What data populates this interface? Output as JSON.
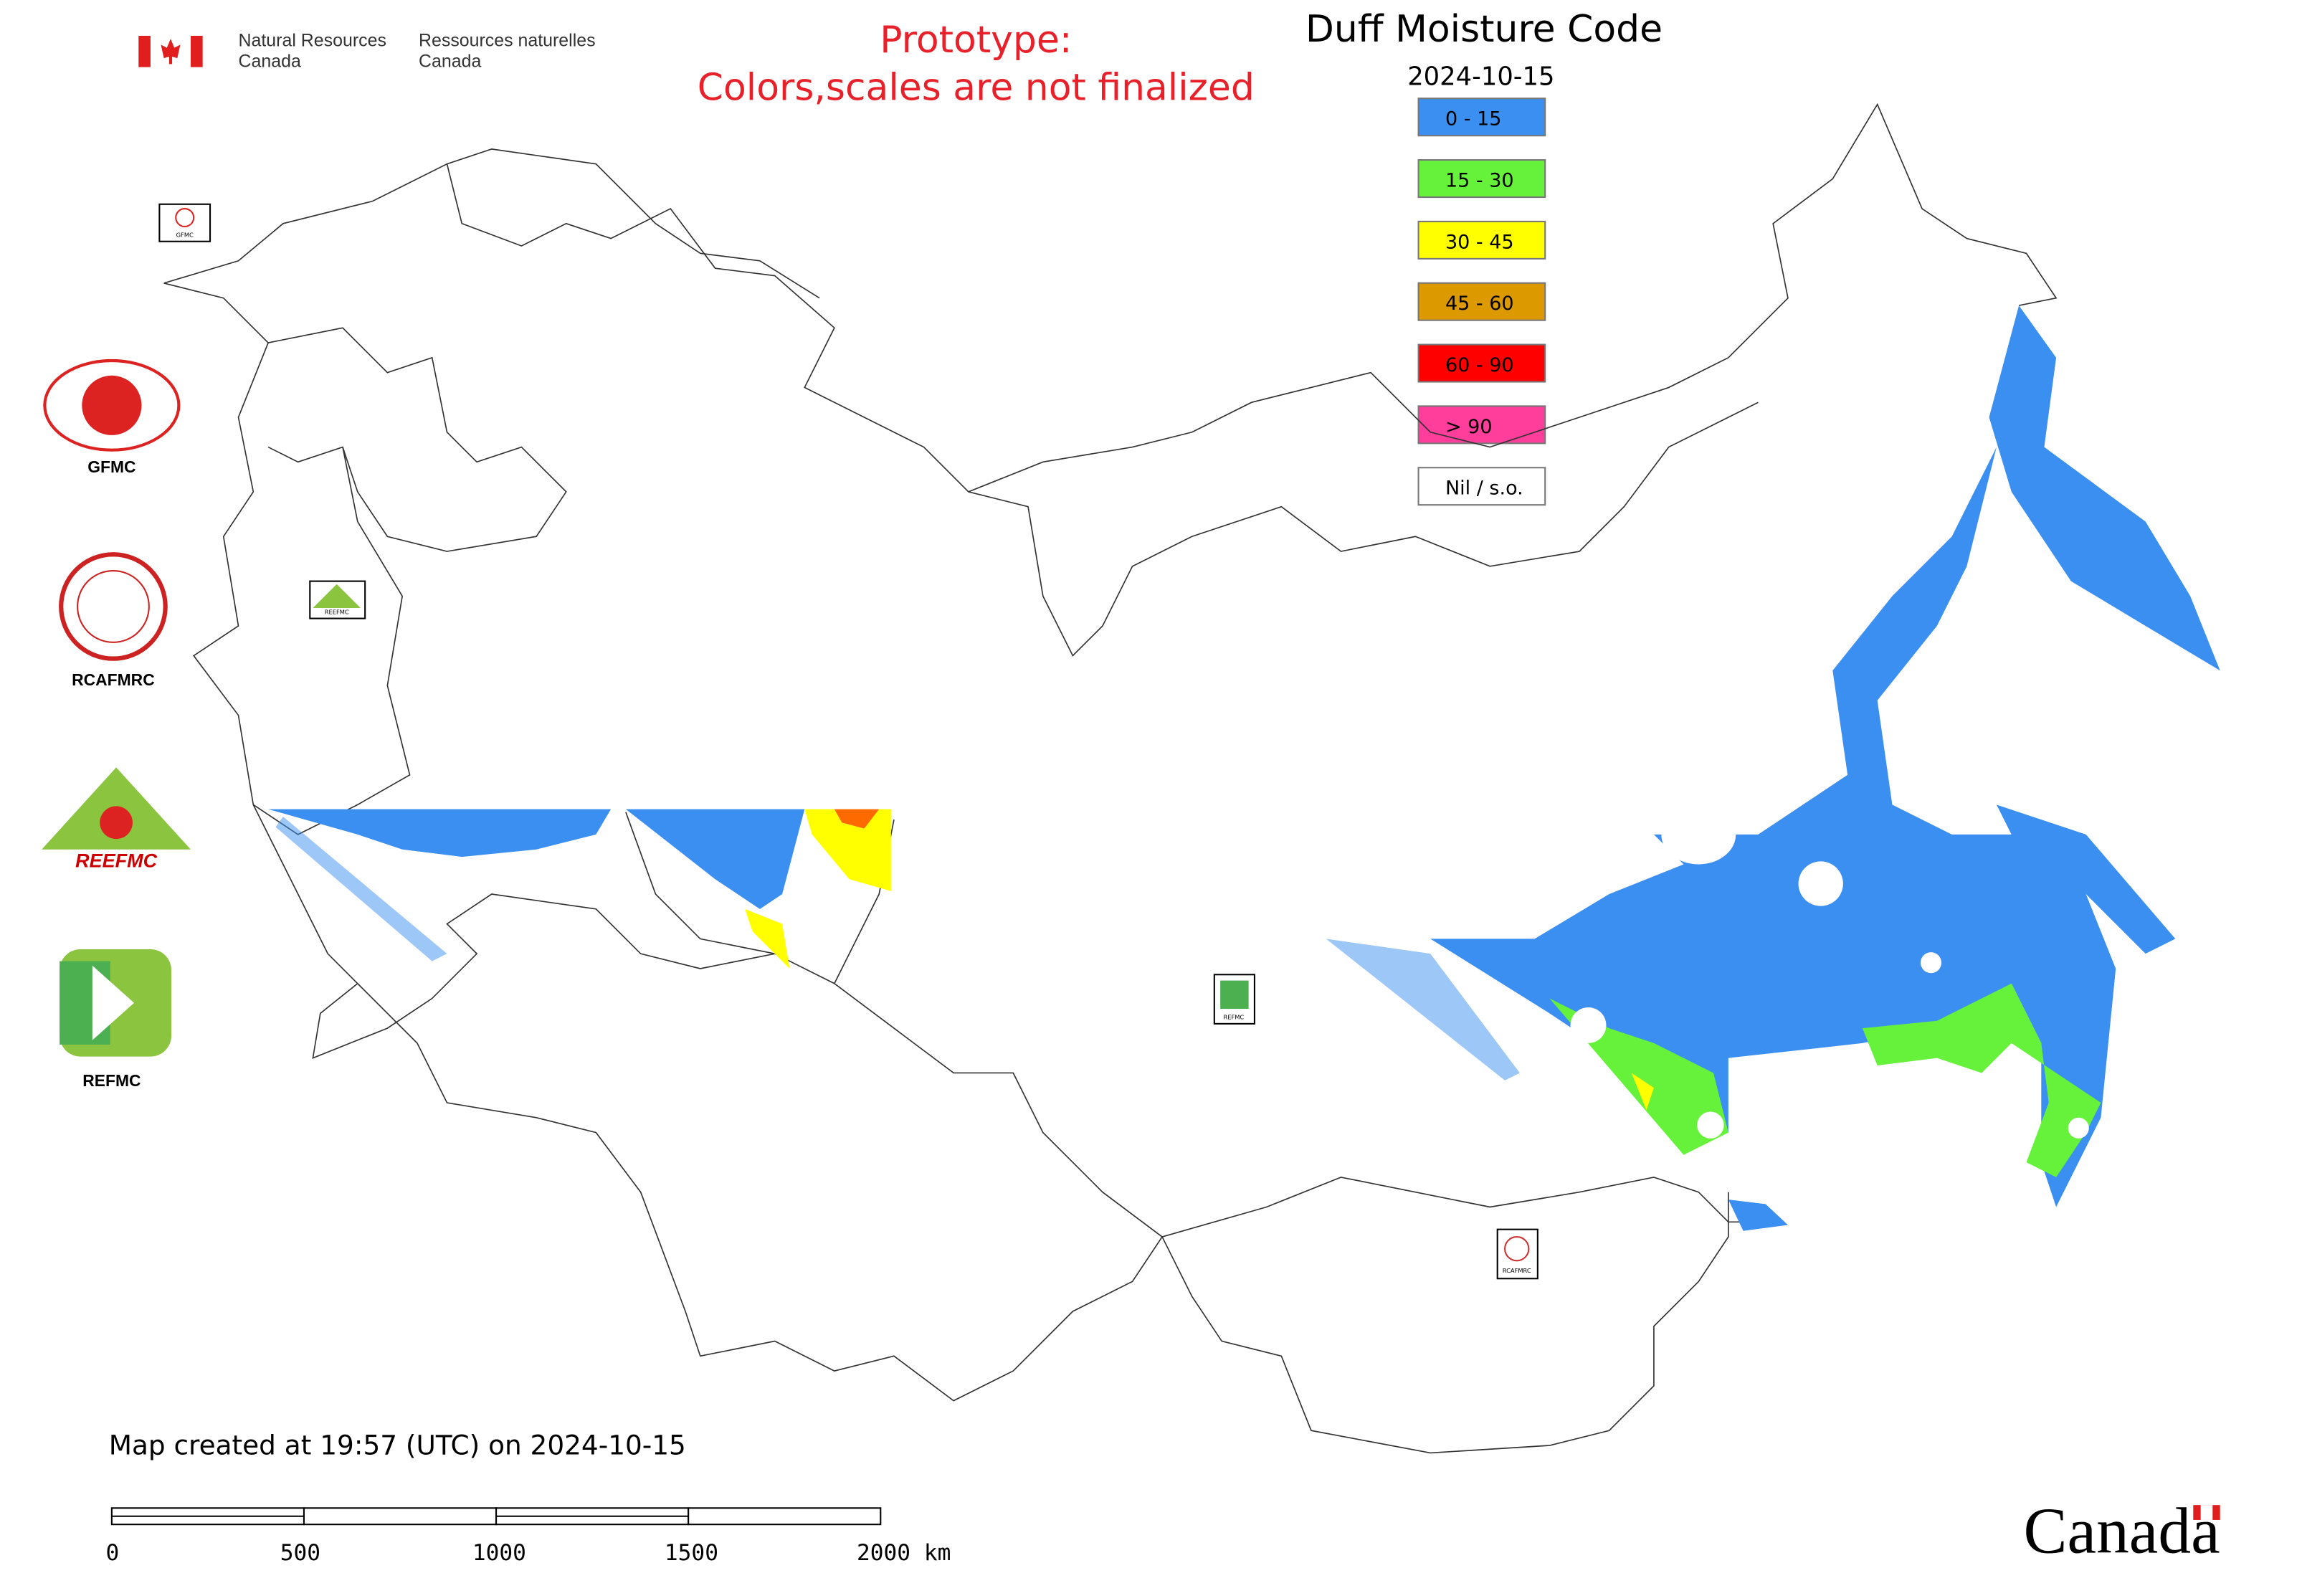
{
  "header": {
    "agency_en": [
      "Natural Resources",
      "Canada"
    ],
    "agency_fr": [
      "Ressources naturelles",
      "Canada"
    ]
  },
  "prototype_notice": [
    "Prototype:",
    "Colors,scales are not finalized"
  ],
  "title": "Duff Moisture Code",
  "date": "2024-10-15",
  "legend": [
    {
      "label": "0 - 15",
      "color": "#3b8ff0"
    },
    {
      "label": "15 - 30",
      "color": "#66f23a"
    },
    {
      "label": "30 - 45",
      "color": "#ffff00"
    },
    {
      "label": "45 - 60",
      "color": "#dd9900"
    },
    {
      "label": "60 - 90",
      "color": "#ff0000"
    },
    {
      "label": "> 90",
      "color": "#ff3d9a"
    },
    {
      "label": "Nil / s.o.",
      "color": "#ffffff"
    }
  ],
  "logos": [
    "GFMC",
    "RCAFMRC",
    "REEFMC",
    "REFMC"
  ],
  "map_markers": [
    "GFMC",
    "REEFMC",
    "REFMC",
    "RCAFMRC"
  ],
  "footer": "Map created at 19:57 (UTC) on 2024-10-15",
  "scale_bar": [
    "0",
    "500",
    "1000",
    "1500",
    "2000 km"
  ],
  "wordmark": "Canada"
}
